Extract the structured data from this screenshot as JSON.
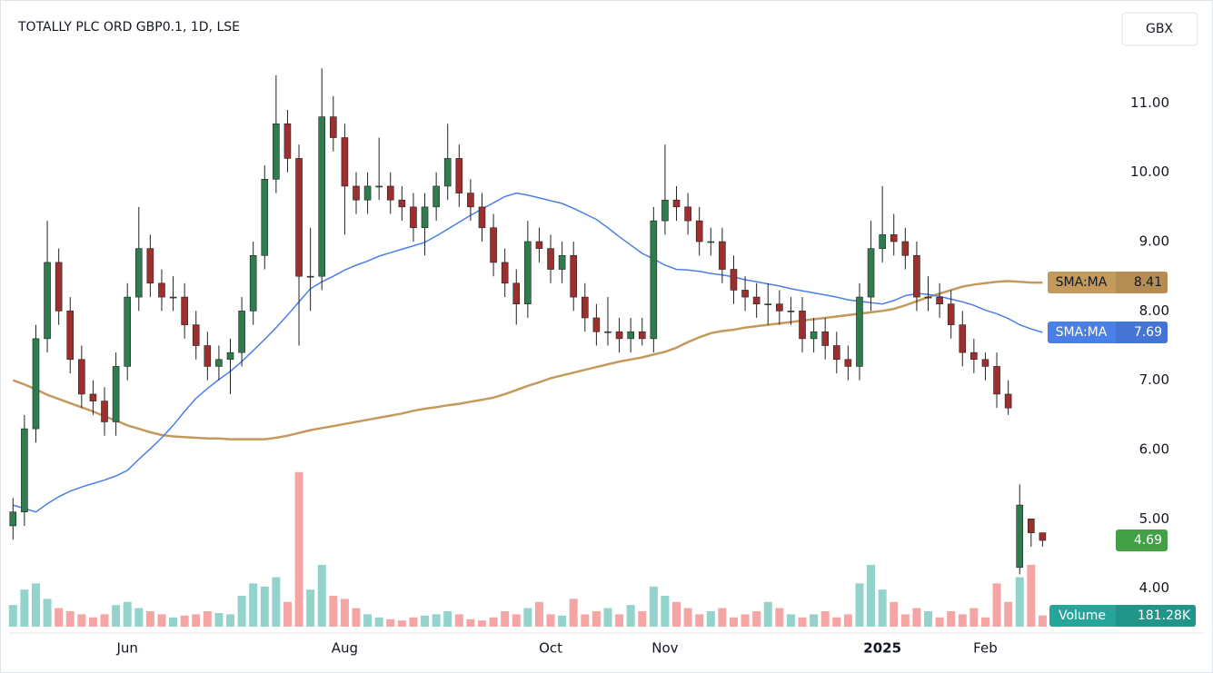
{
  "chart_data": {
    "type": "candlestick",
    "title": "TOTALLY PLC ORD GBP0.1, 1D, LSE",
    "currency": "GBX",
    "up_color": "#2f7d4f",
    "down_color": "#9e2f2f",
    "price_tag_color": "#43a047",
    "xlim": [
      -0.5,
      91
    ],
    "xticks": [
      {
        "value": 10,
        "label": "Jun"
      },
      {
        "value": 29,
        "label": "Aug"
      },
      {
        "value": 47,
        "label": "Oct"
      },
      {
        "value": 57,
        "label": "Nov"
      },
      {
        "value": 76,
        "label": "2025"
      },
      {
        "value": 85,
        "label": "Feb"
      }
    ],
    "ylim": [
      3.38,
      11.83
    ],
    "yticks": [
      {
        "value": 4,
        "label": "4.00"
      },
      {
        "value": 5,
        "label": "5.00"
      },
      {
        "value": 6,
        "label": "6.00"
      },
      {
        "value": 7,
        "label": "7.00"
      },
      {
        "value": 8,
        "label": "8.00"
      },
      {
        "value": 9,
        "label": "9.00"
      },
      {
        "value": 10,
        "label": "10.00"
      },
      {
        "value": 11,
        "label": "11.00"
      }
    ],
    "open": [
      4.9,
      5.1,
      6.3,
      7.6,
      8.7,
      8.0,
      7.3,
      6.8,
      6.7,
      6.4,
      7.2,
      8.2,
      8.9,
      8.4,
      8.2,
      8.2,
      7.8,
      7.5,
      7.2,
      7.3,
      7.4,
      8.0,
      8.8,
      9.9,
      10.7,
      10.2,
      8.5,
      8.5,
      10.8,
      10.5,
      9.8,
      9.6,
      9.8,
      9.8,
      9.6,
      9.5,
      9.2,
      9.5,
      9.8,
      10.2,
      9.7,
      9.5,
      9.2,
      8.7,
      8.4,
      8.1,
      9.0,
      8.9,
      8.6,
      8.8,
      8.2,
      7.9,
      7.7,
      7.7,
      7.6,
      7.7,
      7.6,
      9.3,
      9.6,
      9.5,
      9.3,
      9.0,
      9.0,
      8.6,
      8.3,
      8.2,
      8.1,
      8.1,
      8.0,
      8.0,
      7.6,
      7.7,
      7.5,
      7.3,
      7.2,
      8.2,
      8.9,
      9.1,
      9.0,
      8.8,
      8.2,
      8.2,
      8.1,
      7.8,
      7.4,
      7.3,
      7.2,
      6.8,
      4.3,
      5.0,
      4.8
    ],
    "high": [
      5.3,
      6.5,
      7.8,
      9.3,
      8.9,
      8.2,
      7.5,
      7.0,
      6.9,
      7.4,
      8.4,
      9.5,
      9.1,
      8.6,
      8.5,
      8.4,
      8.0,
      7.7,
      7.5,
      7.6,
      8.2,
      9.0,
      10.1,
      11.4,
      10.9,
      10.4,
      9.2,
      11.5,
      11.1,
      10.7,
      10.0,
      10.0,
      10.5,
      10.0,
      9.8,
      9.7,
      9.7,
      10.0,
      10.7,
      10.4,
      9.9,
      9.7,
      9.4,
      8.9,
      8.6,
      9.3,
      9.2,
      9.1,
      9.0,
      9.0,
      8.4,
      8.1,
      8.2,
      7.9,
      7.9,
      7.9,
      9.5,
      10.4,
      9.8,
      9.7,
      9.5,
      9.2,
      9.2,
      8.8,
      8.5,
      8.4,
      8.4,
      8.3,
      8.2,
      8.2,
      7.9,
      7.9,
      7.7,
      7.5,
      8.4,
      9.3,
      9.8,
      9.4,
      9.2,
      9.0,
      8.5,
      8.4,
      8.3,
      8.0,
      7.6,
      7.4,
      7.4,
      7.0,
      5.5,
      5.0,
      4.8
    ],
    "low": [
      4.7,
      4.9,
      6.1,
      7.4,
      7.8,
      7.1,
      6.6,
      6.5,
      6.2,
      6.2,
      7.0,
      8.0,
      8.2,
      8.0,
      8.0,
      7.6,
      7.3,
      7.0,
      7.0,
      6.8,
      7.2,
      7.8,
      8.6,
      9.7,
      10.0,
      7.5,
      8.0,
      8.3,
      10.3,
      9.1,
      9.4,
      9.4,
      9.6,
      9.4,
      9.3,
      9.0,
      8.8,
      9.3,
      9.6,
      9.5,
      9.3,
      9.0,
      8.5,
      8.2,
      7.8,
      7.9,
      8.7,
      8.4,
      8.4,
      8.0,
      7.7,
      7.5,
      7.5,
      7.4,
      7.4,
      7.5,
      7.4,
      9.1,
      9.3,
      9.1,
      8.8,
      8.8,
      8.4,
      8.1,
      8.0,
      7.9,
      7.8,
      7.8,
      7.8,
      7.4,
      7.4,
      7.3,
      7.1,
      7.0,
      7.0,
      8.0,
      8.7,
      8.8,
      8.6,
      8.0,
      8.0,
      7.9,
      7.6,
      7.2,
      7.1,
      7.0,
      6.6,
      6.5,
      4.2,
      4.6,
      4.6
    ],
    "close": [
      5.1,
      6.3,
      7.6,
      8.7,
      8.0,
      7.3,
      6.8,
      6.7,
      6.4,
      7.2,
      8.2,
      8.9,
      8.4,
      8.2,
      8.2,
      7.8,
      7.5,
      7.2,
      7.3,
      7.4,
      8.0,
      8.8,
      9.9,
      10.7,
      10.2,
      8.5,
      8.5,
      10.8,
      10.5,
      9.8,
      9.6,
      9.8,
      9.8,
      9.6,
      9.5,
      9.2,
      9.5,
      9.8,
      10.2,
      9.7,
      9.5,
      9.2,
      8.7,
      8.4,
      8.1,
      9.0,
      8.9,
      8.6,
      8.8,
      8.2,
      7.9,
      7.7,
      7.7,
      7.6,
      7.7,
      7.6,
      9.3,
      9.6,
      9.5,
      9.3,
      9.0,
      9.0,
      8.6,
      8.3,
      8.2,
      8.1,
      8.1,
      8.0,
      8.0,
      7.6,
      7.7,
      7.5,
      7.3,
      7.2,
      8.2,
      8.9,
      9.1,
      9.0,
      8.8,
      8.2,
      8.2,
      8.1,
      7.8,
      7.4,
      7.3,
      7.2,
      6.8,
      6.6,
      5.2,
      4.8,
      4.69
    ],
    "volume": {
      "name": "Volume",
      "color": "#26a69a",
      "up_color": "#93d3cc",
      "down_color": "#f6a5a5",
      "vlim": [
        0,
        2600000
      ],
      "last_value_label": "181.28K",
      "values": [
        350000,
        600000,
        700000,
        450000,
        300000,
        250000,
        200000,
        150000,
        200000,
        350000,
        400000,
        300000,
        250000,
        200000,
        150000,
        180000,
        200000,
        250000,
        220000,
        200000,
        500000,
        700000,
        650000,
        800000,
        400000,
        2500000,
        600000,
        1000000,
        500000,
        450000,
        300000,
        200000,
        150000,
        120000,
        100000,
        150000,
        180000,
        200000,
        250000,
        200000,
        120000,
        100000,
        150000,
        250000,
        200000,
        300000,
        400000,
        200000,
        180000,
        450000,
        200000,
        250000,
        300000,
        200000,
        350000,
        250000,
        650000,
        500000,
        400000,
        300000,
        200000,
        250000,
        300000,
        150000,
        200000,
        250000,
        400000,
        300000,
        200000,
        150000,
        200000,
        250000,
        150000,
        200000,
        700000,
        1000000,
        600000,
        400000,
        200000,
        300000,
        250000,
        150000,
        250000,
        200000,
        300000,
        150000,
        700000,
        400000,
        800000,
        1000000,
        181280
      ]
    },
    "series": [
      {
        "name": "SMA:MA",
        "color": "#c49a5c",
        "values": [
          7.0,
          6.94,
          6.87,
          6.79,
          6.73,
          6.67,
          6.61,
          6.55,
          6.48,
          6.42,
          6.35,
          6.3,
          6.25,
          6.21,
          6.19,
          6.18,
          6.17,
          6.16,
          6.16,
          6.15,
          6.15,
          6.15,
          6.15,
          6.17,
          6.2,
          6.24,
          6.28,
          6.31,
          6.34,
          6.37,
          6.4,
          6.43,
          6.46,
          6.49,
          6.52,
          6.56,
          6.59,
          6.61,
          6.64,
          6.66,
          6.69,
          6.72,
          6.75,
          6.8,
          6.86,
          6.92,
          6.97,
          7.03,
          7.07,
          7.11,
          7.15,
          7.19,
          7.23,
          7.27,
          7.3,
          7.33,
          7.37,
          7.41,
          7.47,
          7.55,
          7.62,
          7.68,
          7.71,
          7.73,
          7.76,
          7.78,
          7.8,
          7.82,
          7.84,
          7.86,
          7.88,
          7.9,
          7.92,
          7.94,
          7.96,
          7.98,
          8.0,
          8.03,
          8.08,
          8.14,
          8.2,
          8.25,
          8.3,
          8.35,
          8.38,
          8.4,
          8.42,
          8.43,
          8.42,
          8.41,
          8.41
        ]
      },
      {
        "name": "SMA:MA",
        "color": "#4a7fe8",
        "values": [
          5.2,
          5.15,
          5.1,
          5.22,
          5.32,
          5.4,
          5.46,
          5.51,
          5.56,
          5.62,
          5.7,
          5.86,
          6.01,
          6.17,
          6.35,
          6.55,
          6.74,
          6.88,
          7.01,
          7.13,
          7.27,
          7.43,
          7.59,
          7.76,
          7.94,
          8.13,
          8.32,
          8.42,
          8.5,
          8.59,
          8.66,
          8.72,
          8.79,
          8.84,
          8.89,
          8.94,
          8.99,
          9.08,
          9.18,
          9.28,
          9.38,
          9.47,
          9.56,
          9.65,
          9.7,
          9.67,
          9.63,
          9.59,
          9.55,
          9.48,
          9.4,
          9.32,
          9.2,
          9.07,
          8.95,
          8.83,
          8.75,
          8.66,
          8.6,
          8.59,
          8.57,
          8.54,
          8.52,
          8.49,
          8.45,
          8.42,
          8.39,
          8.36,
          8.32,
          8.29,
          8.26,
          8.23,
          8.2,
          8.16,
          8.14,
          8.12,
          8.1,
          8.15,
          8.22,
          8.25,
          8.24,
          8.21,
          8.17,
          8.13,
          8.08,
          8.01,
          7.96,
          7.89,
          7.8,
          7.74,
          7.69
        ]
      }
    ]
  }
}
